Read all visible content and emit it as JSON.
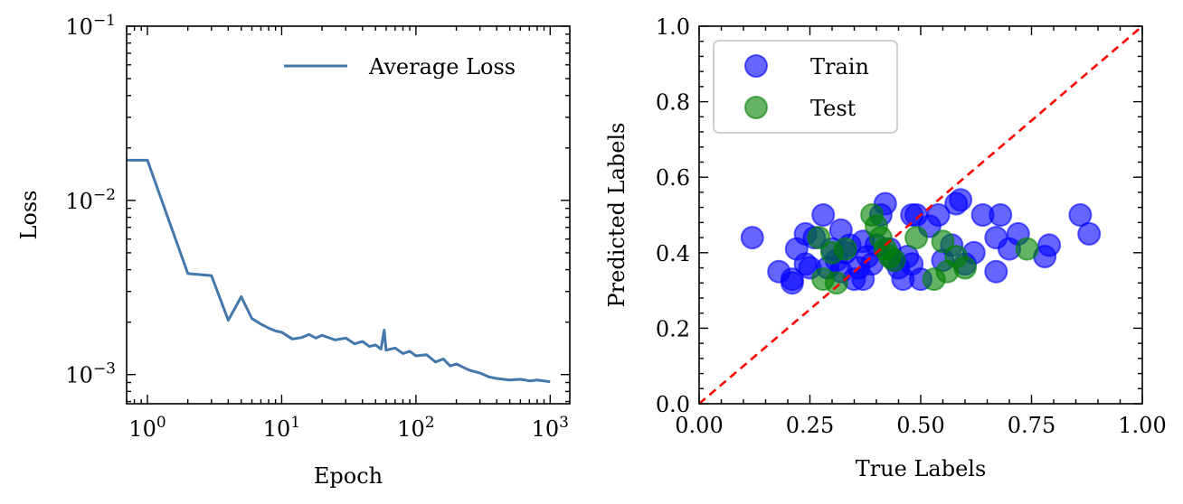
{
  "chart_data": [
    {
      "type": "line",
      "xlabel": "Epoch",
      "ylabel": "Loss",
      "xscale": "log",
      "yscale": "log",
      "xlim": [
        0.7,
        1400
      ],
      "ylim": [
        0.00068,
        0.1
      ],
      "x_ticks": [
        {
          "value": 1,
          "base": "10",
          "exp": "0"
        },
        {
          "value": 10,
          "base": "10",
          "exp": "1"
        },
        {
          "value": 100,
          "base": "10",
          "exp": "2"
        },
        {
          "value": 1000,
          "base": "10",
          "exp": "3"
        }
      ],
      "y_ticks": [
        {
          "value": 0.001,
          "base": "10",
          "exp": "−3"
        },
        {
          "value": 0.01,
          "base": "10",
          "exp": "−2"
        },
        {
          "value": 0.1,
          "base": "10",
          "exp": "−1"
        }
      ],
      "legend_position": "top-right",
      "series": [
        {
          "name": "Average Loss",
          "color": "#4477aa",
          "points": [
            [
              0.7,
              0.017
            ],
            [
              1,
              0.017
            ],
            [
              2,
              0.0038
            ],
            [
              3,
              0.0037
            ],
            [
              4,
              0.00205
            ],
            [
              5,
              0.0028
            ],
            [
              6,
              0.0021
            ],
            [
              7,
              0.00195
            ],
            [
              8,
              0.00185
            ],
            [
              9,
              0.00178
            ],
            [
              10,
              0.00175
            ],
            [
              12,
              0.0016
            ],
            [
              14,
              0.00163
            ],
            [
              16,
              0.0017
            ],
            [
              18,
              0.00162
            ],
            [
              20,
              0.00168
            ],
            [
              25,
              0.00158
            ],
            [
              30,
              0.00162
            ],
            [
              35,
              0.0015
            ],
            [
              40,
              0.00155
            ],
            [
              45,
              0.00145
            ],
            [
              50,
              0.00148
            ],
            [
              55,
              0.0014
            ],
            [
              58,
              0.0018
            ],
            [
              60,
              0.00138
            ],
            [
              70,
              0.00142
            ],
            [
              80,
              0.00132
            ],
            [
              90,
              0.00136
            ],
            [
              100,
              0.00128
            ],
            [
              120,
              0.0013
            ],
            [
              140,
              0.00118
            ],
            [
              160,
              0.00123
            ],
            [
              180,
              0.00112
            ],
            [
              200,
              0.00115
            ],
            [
              250,
              0.00106
            ],
            [
              300,
              0.00102
            ],
            [
              350,
              0.00097
            ],
            [
              400,
              0.00095
            ],
            [
              500,
              0.00093
            ],
            [
              600,
              0.00094
            ],
            [
              700,
              0.00092
            ],
            [
              800,
              0.00093
            ],
            [
              900,
              0.00092
            ],
            [
              1000,
              0.00091
            ]
          ]
        }
      ]
    },
    {
      "type": "scatter",
      "xlabel": "True Labels",
      "ylabel": "Predicted Labels",
      "xlim": [
        0,
        1
      ],
      "ylim": [
        0,
        1
      ],
      "x_ticks": [
        "0.00",
        "0.25",
        "0.50",
        "0.75",
        "1.00"
      ],
      "y_ticks": [
        "0.0",
        "0.2",
        "0.4",
        "0.6",
        "0.8",
        "1.0"
      ],
      "reference_line": {
        "from": [
          0,
          0
        ],
        "to": [
          1,
          1
        ],
        "color": "#ff0000",
        "style": "dashed"
      },
      "legend_position": "top-left",
      "series": [
        {
          "name": "Train",
          "color": "#0000ff",
          "alpha": 0.6,
          "points": [
            [
              0.12,
              0.44
            ],
            [
              0.18,
              0.35
            ],
            [
              0.21,
              0.32
            ],
            [
              0.21,
              0.33
            ],
            [
              0.22,
              0.41
            ],
            [
              0.24,
              0.37
            ],
            [
              0.24,
              0.45
            ],
            [
              0.25,
              0.36
            ],
            [
              0.26,
              0.44
            ],
            [
              0.28,
              0.5
            ],
            [
              0.29,
              0.36
            ],
            [
              0.3,
              0.41
            ],
            [
              0.31,
              0.38
            ],
            [
              0.32,
              0.35
            ],
            [
              0.32,
              0.46
            ],
            [
              0.33,
              0.4
            ],
            [
              0.34,
              0.42
            ],
            [
              0.35,
              0.33
            ],
            [
              0.36,
              0.36
            ],
            [
              0.37,
              0.33
            ],
            [
              0.37,
              0.43
            ],
            [
              0.38,
              0.39
            ],
            [
              0.39,
              0.37
            ],
            [
              0.4,
              0.42
            ],
            [
              0.41,
              0.5
            ],
            [
              0.42,
              0.53
            ],
            [
              0.43,
              0.41
            ],
            [
              0.44,
              0.38
            ],
            [
              0.45,
              0.36
            ],
            [
              0.46,
              0.33
            ],
            [
              0.47,
              0.39
            ],
            [
              0.48,
              0.5
            ],
            [
              0.48,
              0.37
            ],
            [
              0.49,
              0.5
            ],
            [
              0.5,
              0.33
            ],
            [
              0.52,
              0.47
            ],
            [
              0.54,
              0.5
            ],
            [
              0.55,
              0.38
            ],
            [
              0.57,
              0.42
            ],
            [
              0.58,
              0.53
            ],
            [
              0.59,
              0.54
            ],
            [
              0.6,
              0.37
            ],
            [
              0.62,
              0.4
            ],
            [
              0.64,
              0.5
            ],
            [
              0.67,
              0.44
            ],
            [
              0.67,
              0.35
            ],
            [
              0.68,
              0.5
            ],
            [
              0.7,
              0.41
            ],
            [
              0.72,
              0.45
            ],
            [
              0.78,
              0.39
            ],
            [
              0.79,
              0.42
            ],
            [
              0.86,
              0.5
            ],
            [
              0.88,
              0.45
            ]
          ]
        },
        {
          "name": "Test",
          "color": "#008000",
          "alpha": 0.6,
          "points": [
            [
              0.27,
              0.44
            ],
            [
              0.28,
              0.33
            ],
            [
              0.3,
              0.4
            ],
            [
              0.31,
              0.32
            ],
            [
              0.33,
              0.41
            ],
            [
              0.39,
              0.5
            ],
            [
              0.4,
              0.47
            ],
            [
              0.41,
              0.44
            ],
            [
              0.42,
              0.41
            ],
            [
              0.43,
              0.39
            ],
            [
              0.44,
              0.38
            ],
            [
              0.49,
              0.44
            ],
            [
              0.53,
              0.33
            ],
            [
              0.55,
              0.43
            ],
            [
              0.56,
              0.35
            ],
            [
              0.58,
              0.39
            ],
            [
              0.6,
              0.36
            ],
            [
              0.74,
              0.41
            ]
          ]
        }
      ]
    }
  ]
}
